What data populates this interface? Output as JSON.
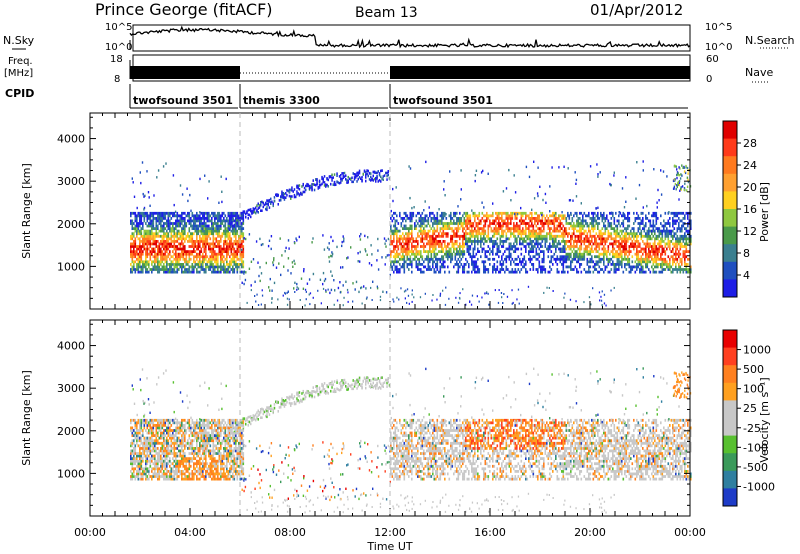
{
  "header": {
    "station": "Prince George (fitACF)",
    "beam": "Beam 13",
    "date": "01/Apr/2012"
  },
  "noise_panel": {
    "left_label": "N.Sky",
    "right_label": "N.Search",
    "left_ticks": [
      "10^5",
      "10^0"
    ],
    "right_ticks": [
      "10^5",
      "10^0"
    ]
  },
  "freq_panel": {
    "left_label_1": "Freq.",
    "left_label_2": "[MHz]",
    "right_label": "Nave",
    "left_ticks": [
      "18",
      "8"
    ],
    "right_ticks": [
      "60",
      "0"
    ]
  },
  "cpid_panel": {
    "label": "CPID",
    "segments": [
      {
        "name": "twofsound 3501",
        "start_hour": 1.6,
        "end_hour": 6.0
      },
      {
        "name": "themis 3300",
        "start_hour": 6.0,
        "end_hour": 12.0
      },
      {
        "name": "twofsound 3501",
        "start_hour": 12.0,
        "end_hour": 24.0
      }
    ]
  },
  "time_axis": {
    "label": "Time UT",
    "ticks": [
      "00:00",
      "04:00",
      "08:00",
      "12:00",
      "16:00",
      "20:00",
      "00:00"
    ],
    "range_hours": [
      0,
      24
    ]
  },
  "chart_data": [
    {
      "type": "heatmap",
      "name": "power",
      "ylabel": "Slant Range [km]",
      "yticks": [
        "1000",
        "2000",
        "3000",
        "4000"
      ],
      "ylim": [
        0,
        4600
      ],
      "colorbar_label": "Power [dB]",
      "colorbar_ticks": [
        "4",
        "8",
        "12",
        "16",
        "20",
        "24",
        "28"
      ],
      "colorbar_colors": [
        "#1e1ee6",
        "#1f4fbf",
        "#3a7f8f",
        "#4a9a4a",
        "#8fc840",
        "#ffd020",
        "#ffa030",
        "#ff7a1f",
        "#ff3a1a",
        "#e00000"
      ],
      "regions": [
        {
          "start_hour": 1.6,
          "end_hour": 6.0,
          "range_min": 900,
          "range_max": 2300,
          "level": "high"
        },
        {
          "start_hour": 5.5,
          "end_hour": 10.5,
          "range_min": 2000,
          "range_max": 3100,
          "level": "low"
        },
        {
          "start_hour": 10.5,
          "end_hour": 12.0,
          "range_min": 2800,
          "range_max": 3200,
          "level": "low"
        },
        {
          "start_hour": 12.0,
          "end_hour": 24.0,
          "range_min": 900,
          "range_max": 2200,
          "level": "high"
        }
      ]
    },
    {
      "type": "heatmap",
      "name": "velocity",
      "ylabel": "Slant Range [km]",
      "yticks": [
        "1000",
        "2000",
        "3000",
        "4000"
      ],
      "ylim": [
        0,
        4600
      ],
      "colorbar_label": "Velocity [m s⁻¹]",
      "colorbar_ticks": [
        "1000",
        "500",
        "100",
        "25",
        "-25",
        "-100",
        "-500",
        "-1000"
      ],
      "colorbar_colors": [
        "#1e3cc8",
        "#2f7fa0",
        "#3a9a5a",
        "#58c030",
        "#c8c8c8",
        "#c8c8c8",
        "#ffa020",
        "#ff8020",
        "#ff4020",
        "#e80000"
      ]
    }
  ]
}
